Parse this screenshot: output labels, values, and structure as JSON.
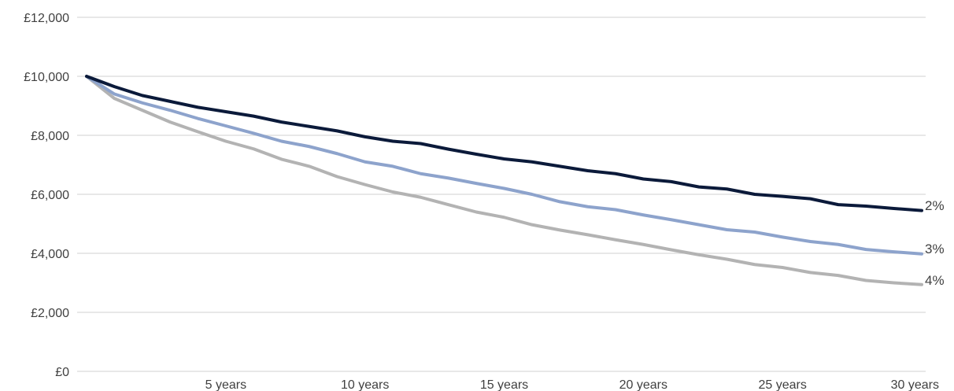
{
  "chart_data": {
    "type": "line",
    "title": "",
    "xlabel": "",
    "ylabel": "",
    "x": [
      0,
      1,
      2,
      3,
      4,
      5,
      6,
      7,
      8,
      9,
      10,
      11,
      12,
      13,
      14,
      15,
      16,
      17,
      18,
      19,
      20,
      21,
      22,
      23,
      24,
      25,
      26,
      27,
      28,
      29,
      30
    ],
    "x_tick_values": [
      5,
      10,
      15,
      20,
      25,
      30
    ],
    "x_tick_labels": [
      "5 years",
      "10 years",
      "15 years",
      "20 years",
      "25 years",
      "30 years"
    ],
    "ylim": [
      0,
      12000
    ],
    "y_tick_values": [
      0,
      2000,
      4000,
      6000,
      8000,
      10000,
      12000
    ],
    "y_tick_labels": [
      "£0",
      "£2,000",
      "£4,000",
      "£6,000",
      "£8,000",
      "£10,000",
      "£12,000"
    ],
    "grid": true,
    "legend": "none",
    "series": [
      {
        "name": "2%",
        "color": "#0b1a3a",
        "values": [
          10000,
          9650,
          9350,
          9150,
          8950,
          8800,
          8650,
          8450,
          8300,
          8150,
          7950,
          7800,
          7720,
          7530,
          7360,
          7200,
          7100,
          6950,
          6800,
          6700,
          6520,
          6430,
          6250,
          6180,
          6000,
          5930,
          5850,
          5650,
          5600,
          5520,
          5450
        ]
      },
      {
        "name": "3%",
        "color": "#8da3cc",
        "values": [
          10000,
          9400,
          9100,
          8850,
          8570,
          8320,
          8070,
          7800,
          7620,
          7380,
          7100,
          6950,
          6700,
          6550,
          6370,
          6200,
          6000,
          5750,
          5580,
          5480,
          5300,
          5140,
          4970,
          4800,
          4720,
          4550,
          4400,
          4300,
          4130,
          4050,
          3980
        ]
      },
      {
        "name": "4%",
        "color": "#b3b3b3",
        "values": [
          10000,
          9250,
          8850,
          8450,
          8120,
          7800,
          7540,
          7190,
          6950,
          6600,
          6330,
          6080,
          5900,
          5650,
          5400,
          5220,
          4970,
          4790,
          4630,
          4460,
          4300,
          4120,
          3950,
          3800,
          3620,
          3520,
          3350,
          3250,
          3080,
          3000,
          2940
        ]
      }
    ]
  }
}
